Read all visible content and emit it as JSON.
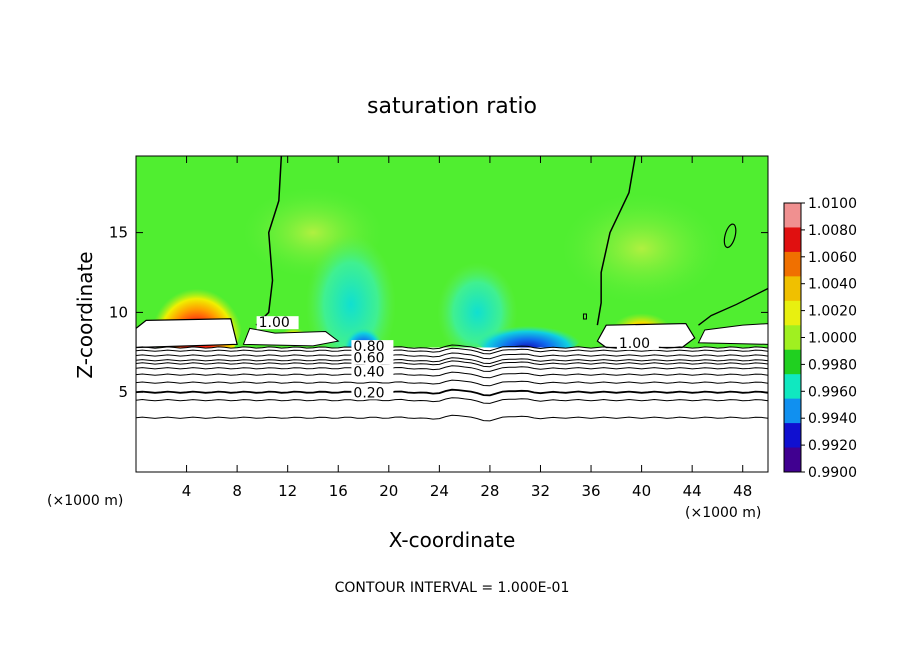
{
  "chart_data": {
    "type": "heatmap",
    "title": "saturation ratio",
    "xlabel": "X-coordinate",
    "ylabel": "Z-coordinate",
    "x_unit_left": "(×1000 m)",
    "x_unit_right": "(×1000 m)",
    "footer": "CONTOUR INTERVAL = 1.000E-01",
    "xlim": [
      0,
      50
    ],
    "ylim": [
      0,
      19.8
    ],
    "x_ticks": [
      4,
      8,
      12,
      16,
      20,
      24,
      28,
      32,
      36,
      40,
      44,
      48
    ],
    "y_ticks": [
      5,
      10,
      15
    ],
    "colorbar": {
      "labels": [
        "1.0100",
        "1.0080",
        "1.0060",
        "1.0040",
        "1.0020",
        "1.0000",
        "0.9980",
        "0.9960",
        "0.9940",
        "0.9920",
        "0.9900"
      ],
      "range": [
        0.99,
        1.01
      ],
      "colors": [
        "#f09090",
        "#e01010",
        "#f07000",
        "#f0c000",
        "#e8f010",
        "#a0f020",
        "#20d020",
        "#10e8c0",
        "#1090f0",
        "#1010d0",
        "#400090"
      ]
    },
    "contour_labels": [
      {
        "text": "1.00",
        "x": 9.7,
        "z": 9.2
      },
      {
        "text": "1.00",
        "x": 38.2,
        "z": 7.9
      },
      {
        "text": "0.80",
        "x": 17.2,
        "z": 7.7
      },
      {
        "text": "0.60",
        "x": 17.2,
        "z": 7.0
      },
      {
        "text": "0.40",
        "x": 17.2,
        "z": 6.1
      },
      {
        "text": "0.20",
        "x": 17.2,
        "z": 4.8
      }
    ]
  }
}
